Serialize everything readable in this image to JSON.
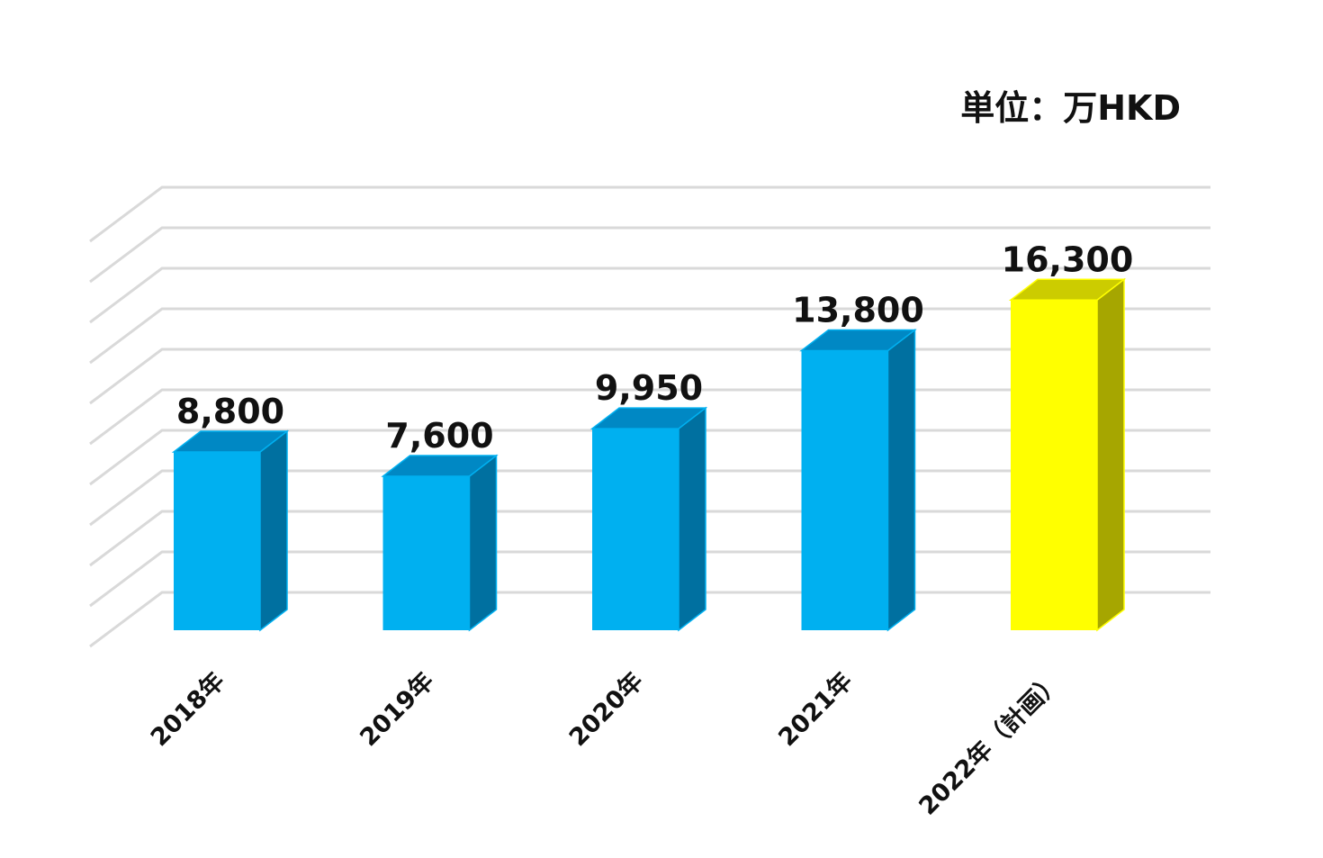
{
  "chart_data": {
    "type": "bar",
    "style": "3d-column",
    "unit": "単位：万HKD",
    "categories": [
      "2018年",
      "2019年",
      "2020年",
      "2021年",
      "2022年（計画）"
    ],
    "values": [
      8800,
      7600,
      9950,
      13800,
      16300
    ],
    "value_labels": [
      "8,800",
      "7,600",
      "9,950",
      "13,800",
      "16,300"
    ],
    "ylim": [
      0,
      20000
    ],
    "grid": true,
    "y_tick_labels_shown": false,
    "colors": {
      "front": [
        "#00B0F0",
        "#00B0F0",
        "#00B0F0",
        "#00B0F0",
        "#FFFF00"
      ],
      "side": [
        "#0070A0",
        "#0070A0",
        "#0070A0",
        "#0070A0",
        "#A6A600"
      ],
      "top": [
        "#0088C4",
        "#0088C4",
        "#0088C4",
        "#0088C4",
        "#CCCC00"
      ],
      "gridline": "#D9D9D9"
    }
  }
}
